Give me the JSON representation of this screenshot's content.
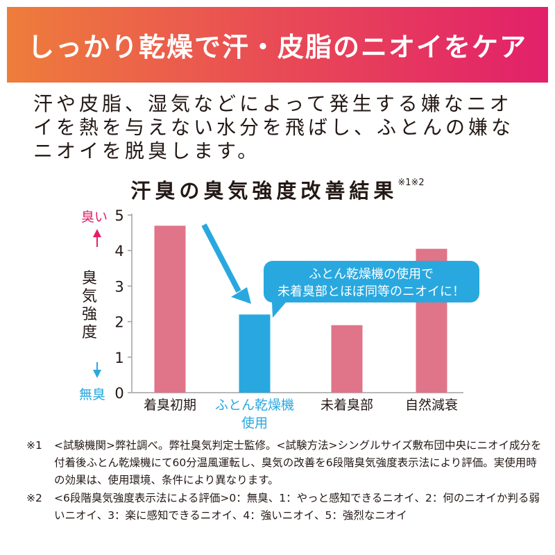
{
  "banner": {
    "title": "しっかり乾燥で汗・皮脂のニオイをケア"
  },
  "intro": {
    "text": "汗や皮脂、湿気などによって発生する嫌なニオイを熱を与えない水分を飛ばし、ふとんの嫌なニオイを脱臭します。"
  },
  "colors": {
    "bar_default": "#e07488",
    "bar_highlight": "#29a8df",
    "banner_start": "#ee7d3b",
    "banner_end": "#e2206a",
    "strong_marker": "#e2206a",
    "none_marker": "#29a8df"
  },
  "chart_data": {
    "type": "bar",
    "title": "汗臭の臭気強度改善結果",
    "title_note": "※1※2",
    "ylabel": "臭気強度",
    "ylim": [
      0,
      5
    ],
    "yticks": [
      "0",
      "1",
      "2",
      "3",
      "4",
      "5"
    ],
    "categories": [
      {
        "line1": "着臭初期",
        "line2": ""
      },
      {
        "line1": "ふとん乾燥機",
        "line2": "使用"
      },
      {
        "line1": "未着臭部",
        "line2": ""
      },
      {
        "line1": "自然減衰",
        "line2": ""
      }
    ],
    "values": [
      4.7,
      2.2,
      1.9,
      4.05
    ],
    "highlight_index": 1,
    "grid": false,
    "y_top_marker": "臭い",
    "y_bottom_marker": "無臭",
    "callout": {
      "line1": "ふとん乾燥機の使用で",
      "line2": "未着臭部とほぼ同等のニオイに！"
    }
  },
  "footnotes": [
    {
      "mark": "※1",
      "text": "<試験機関>弊社調べ。弊社臭気判定士監修。<試験方法>シングルサイズ敷布団中央にニオイ成分を付着後ふとん乾燥機にて60分温風運転し、臭気の改善を6段階臭気強度表示法により評価。実使用時の効果は、使用環境、条件により異なります。"
    },
    {
      "mark": "※2",
      "text": "<6段階臭気強度表示法による評価>0：無臭、1：やっと感知できるニオイ、2：何のニオイか判る弱いニオイ、3：楽に感知できるニオイ、4：強いニオイ、5：強烈なニオイ"
    }
  ]
}
